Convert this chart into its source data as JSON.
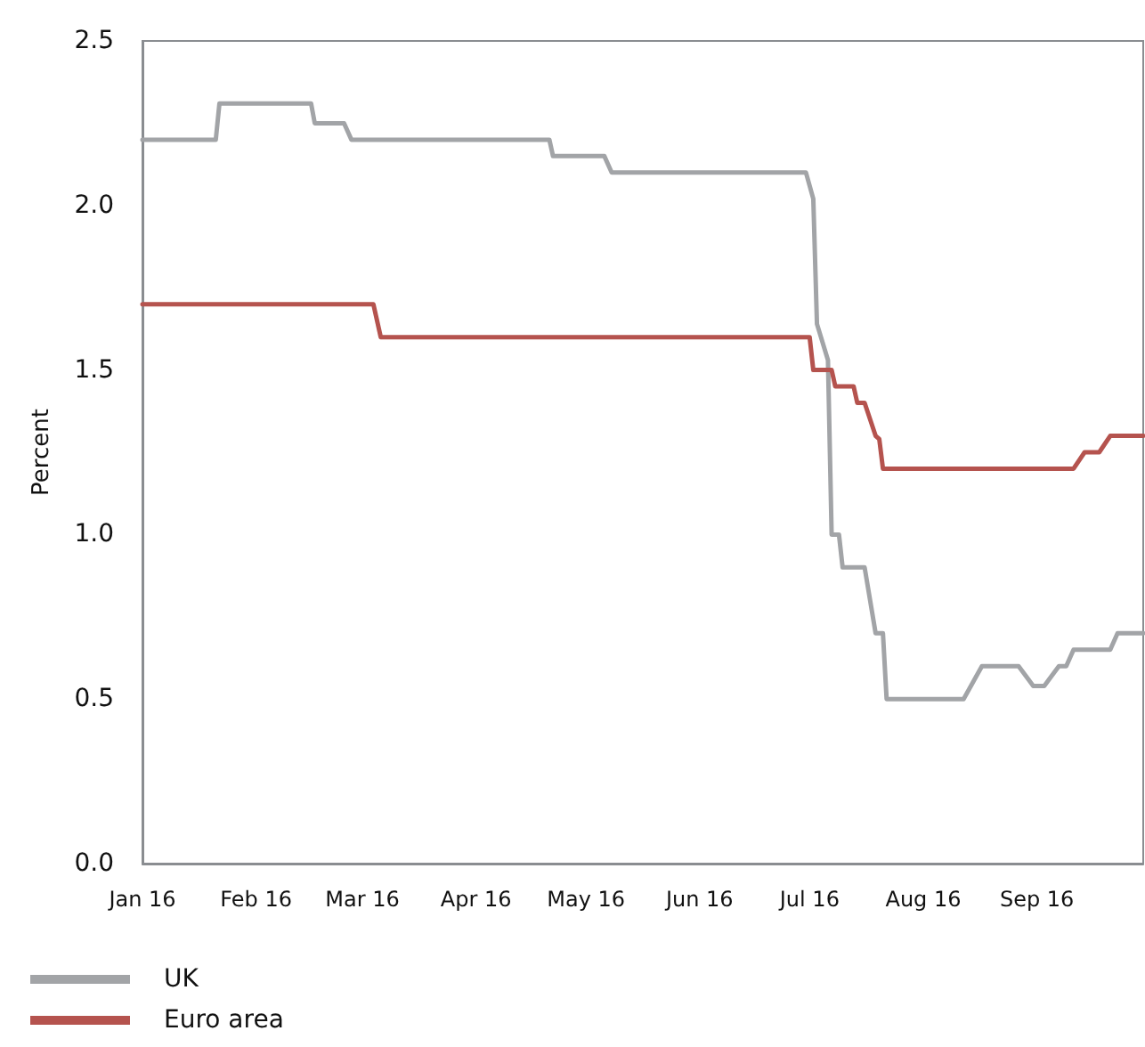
{
  "chart_data": {
    "type": "line",
    "ylabel": "Percent",
    "xlim": [
      "2016-01-01",
      "2016-09-30"
    ],
    "xticks": [
      {
        "value": "2016-01-01",
        "label": "Jan 16"
      },
      {
        "value": "2016-02-01",
        "label": "Feb 16"
      },
      {
        "value": "2016-03-01",
        "label": "Mar 16"
      },
      {
        "value": "2016-04-01",
        "label": "Apr 16"
      },
      {
        "value": "2016-05-01",
        "label": "May 16"
      },
      {
        "value": "2016-06-01",
        "label": "Jun 16"
      },
      {
        "value": "2016-07-01",
        "label": "Jul 16"
      },
      {
        "value": "2016-08-01",
        "label": "Aug 16"
      },
      {
        "value": "2016-09-01",
        "label": "Sep 16"
      }
    ],
    "ylim": [
      0,
      2.5
    ],
    "yticks": [
      {
        "value": 0,
        "label": "0.0"
      },
      {
        "value": 0.5,
        "label": "0.5"
      },
      {
        "value": 1,
        "label": "1.0"
      },
      {
        "value": 1.5,
        "label": "1.5"
      },
      {
        "value": 2,
        "label": "2.0"
      },
      {
        "value": 2.5,
        "label": "2.5"
      }
    ],
    "grid": false,
    "legend": "bottom left",
    "marker": "none",
    "line_style": "solid",
    "series": [
      {
        "name": "UK",
        "color": "#a2a4a7",
        "x": [
          "2016-01-01",
          "2016-01-21",
          "2016-01-22",
          "2016-02-16",
          "2016-02-17",
          "2016-02-25",
          "2016-02-27",
          "2016-04-21",
          "2016-04-22",
          "2016-05-06",
          "2016-05-08",
          "2016-06-30",
          "2016-07-02",
          "2016-07-03",
          "2016-07-06",
          "2016-07-07",
          "2016-07-09",
          "2016-07-10",
          "2016-07-16",
          "2016-07-19",
          "2016-07-21",
          "2016-07-22",
          "2016-08-12",
          "2016-08-17",
          "2016-08-27",
          "2016-08-31",
          "2016-09-03",
          "2016-09-07",
          "2016-09-09",
          "2016-09-11",
          "2016-09-21",
          "2016-09-23",
          "2016-09-30"
        ],
        "values": [
          2.2,
          2.2,
          2.31,
          2.31,
          2.25,
          2.25,
          2.2,
          2.2,
          2.15,
          2.15,
          2.1,
          2.1,
          2.02,
          1.64,
          1.53,
          1.0,
          1.0,
          0.9,
          0.9,
          0.7,
          0.7,
          0.5,
          0.5,
          0.6,
          0.6,
          0.54,
          0.54,
          0.6,
          0.6,
          0.65,
          0.65,
          0.7,
          0.7
        ]
      },
      {
        "name": "Euro area",
        "color": "#b5534e",
        "x": [
          "2016-01-01",
          "2016-03-04",
          "2016-03-06",
          "2016-07-01",
          "2016-07-02",
          "2016-07-07",
          "2016-07-08",
          "2016-07-13",
          "2016-07-14",
          "2016-07-16",
          "2016-07-19",
          "2016-07-20",
          "2016-07-21",
          "2016-09-11",
          "2016-09-14",
          "2016-09-18",
          "2016-09-21",
          "2016-09-30"
        ],
        "values": [
          1.7,
          1.7,
          1.6,
          1.6,
          1.5,
          1.5,
          1.45,
          1.45,
          1.4,
          1.4,
          1.3,
          1.29,
          1.2,
          1.2,
          1.25,
          1.25,
          1.3,
          1.3
        ]
      }
    ]
  }
}
